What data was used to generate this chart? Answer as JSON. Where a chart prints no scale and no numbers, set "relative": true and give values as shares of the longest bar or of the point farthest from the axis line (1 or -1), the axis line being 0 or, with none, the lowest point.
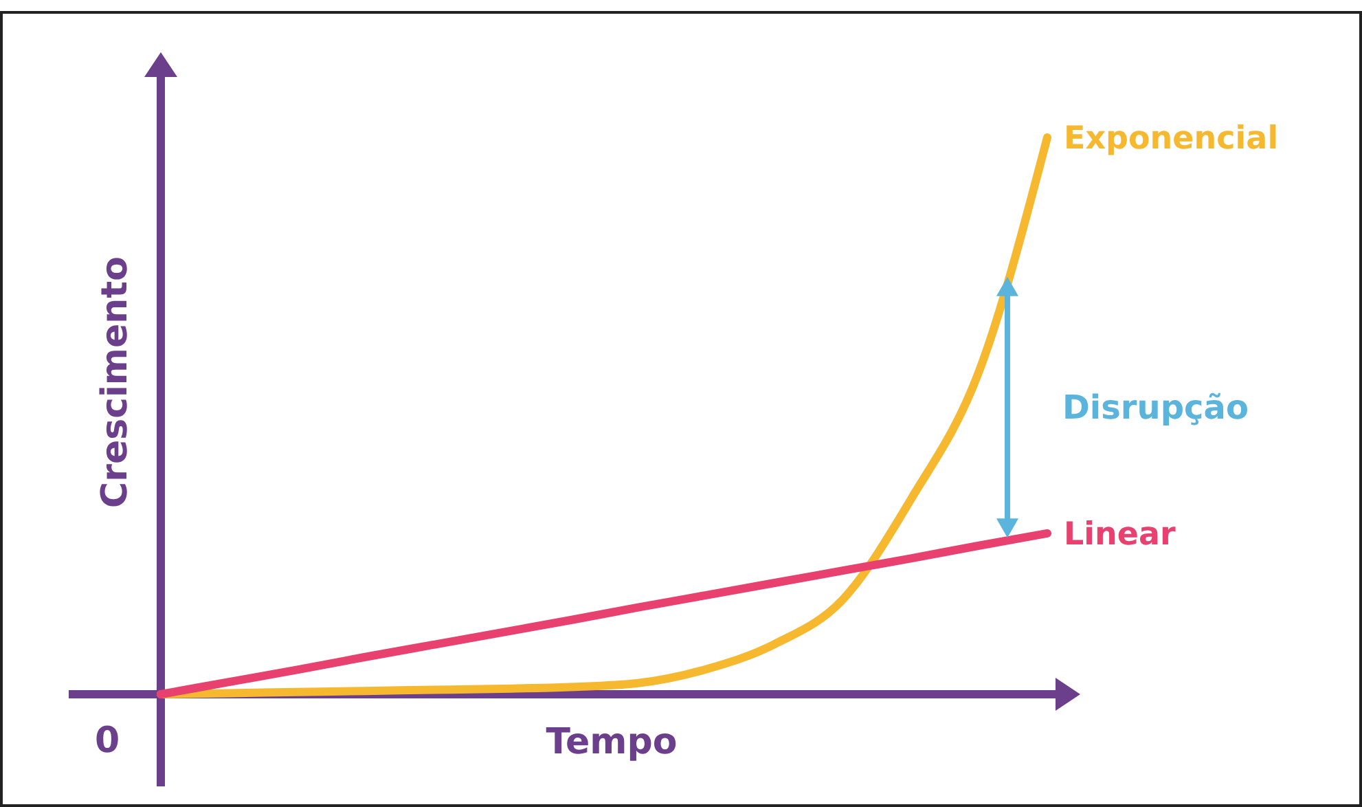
{
  "chart_data": {
    "type": "line",
    "relative": true,
    "xlabel": "Tempo",
    "ylabel": "Crescimento",
    "categories": [
      null,
      null,
      null,
      null,
      null,
      null,
      null,
      null,
      null,
      null,
      null,
      null,
      null,
      null
    ],
    "series": [
      {
        "name": "Exponencial",
        "color": "#f5b82e",
        "values": [
          0,
          0.002,
          0.004,
          0.006,
          0.008,
          0.01,
          0.013,
          0.02,
          0.045,
          0.09,
          0.17,
          0.35,
          0.58,
          1
        ]
      },
      {
        "name": "Linear",
        "color": "#e8416f",
        "values": [
          0,
          0.022,
          0.044,
          0.067,
          0.089,
          0.111,
          0.133,
          0.156,
          0.178,
          0.2,
          0.222,
          0.244,
          0.267,
          0.289
        ]
      }
    ],
    "annotations": [
      "Disrupção",
      "0"
    ],
    "marker": "none",
    "line_style": "solid"
  }
}
